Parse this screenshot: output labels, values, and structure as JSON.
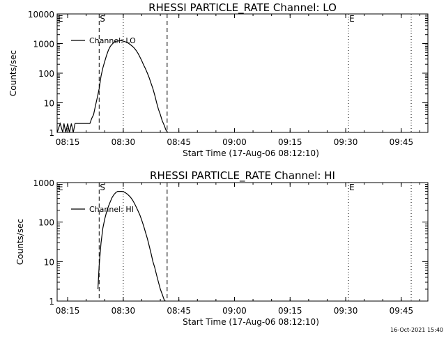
{
  "chart_data": [
    {
      "type": "line",
      "title": "RHESSI PARTICLE_RATE Channel: LO",
      "xlabel": "Start Time (17-Aug-06 08:12:10)",
      "ylabel": "Counts/sec",
      "yscale": "log",
      "ylim": [
        1,
        10000
      ],
      "y_ticks": [
        1,
        10,
        100,
        1000,
        10000
      ],
      "y_tick_labels": [
        "1",
        "10",
        "100",
        "1000",
        "10000"
      ],
      "x_ticks": [
        "08:15",
        "08:30",
        "08:45",
        "09:00",
        "09:15",
        "09:30",
        "09:45"
      ],
      "grid": false,
      "legend": "top-left",
      "markers": [
        {
          "label": "E",
          "time": "08:12:10",
          "style": "dotted"
        },
        {
          "label": "S",
          "time": "08:23:30",
          "style": "dashed"
        },
        {
          "label": "",
          "time": "08:30:00",
          "style": "dotted"
        },
        {
          "label": "",
          "time": "08:41:50",
          "style": "dashed"
        },
        {
          "label": "E",
          "time": "09:30:45",
          "style": "dotted"
        },
        {
          "label": "",
          "time": "09:47:40",
          "style": "dotted"
        }
      ],
      "series": [
        {
          "name": "Channel: LO",
          "x": [
            "08:12:10",
            "08:13:00",
            "08:13:40",
            "08:14:00",
            "08:14:30",
            "08:15:00",
            "08:15:30",
            "08:16:00",
            "08:16:30",
            "08:17:00",
            "08:17:30",
            "08:18:00",
            "08:18:30",
            "08:19:00",
            "08:19:30",
            "08:20:00",
            "08:20:30",
            "08:21:00",
            "08:21:30",
            "08:22:00",
            "08:22:30",
            "08:23:00",
            "08:23:30",
            "08:24:00",
            "08:24:30",
            "08:25:00",
            "08:25:30",
            "08:26:00",
            "08:26:30",
            "08:27:00",
            "08:27:30",
            "08:28:00",
            "08:28:30",
            "08:29:00",
            "08:29:30",
            "08:30:00",
            "08:30:30",
            "08:31:00",
            "08:31:30",
            "08:32:00",
            "08:32:30",
            "08:33:00",
            "08:33:30",
            "08:34:00",
            "08:34:30",
            "08:35:00",
            "08:35:30",
            "08:36:00",
            "08:36:30",
            "08:37:00",
            "08:37:30",
            "08:38:00",
            "08:38:30",
            "08:39:00",
            "08:39:30",
            "08:40:00",
            "08:40:30",
            "08:41:00",
            "08:41:30",
            "08:42:00"
          ],
          "y": [
            1,
            2,
            1,
            2,
            1,
            2,
            1,
            2,
            1,
            2,
            2,
            2,
            2,
            2,
            2,
            2,
            2,
            2,
            3,
            4,
            8,
            15,
            30,
            80,
            150,
            250,
            400,
            600,
            800,
            950,
            1100,
            1200,
            1200,
            1250,
            1250,
            1200,
            1150,
            1100,
            1000,
            900,
            800,
            700,
            580,
            460,
            350,
            260,
            190,
            140,
            100,
            70,
            45,
            30,
            18,
            10,
            6,
            4,
            2.5,
            1.8,
            1.2,
            1
          ]
        }
      ]
    },
    {
      "type": "line",
      "title": "RHESSI PARTICLE_RATE Channel: HI",
      "xlabel": "Start Time (17-Aug-06 08:12:10)",
      "ylabel": "Counts/sec",
      "yscale": "log",
      "ylim": [
        1,
        1000
      ],
      "y_ticks": [
        1,
        10,
        100,
        1000
      ],
      "y_tick_labels": [
        "1",
        "10",
        "100",
        "1000"
      ],
      "x_ticks": [
        "08:15",
        "08:30",
        "08:45",
        "09:00",
        "09:15",
        "09:30",
        "09:45"
      ],
      "grid": false,
      "legend": "top-left",
      "markers": [
        {
          "label": "E",
          "time": "08:12:10",
          "style": "dotted"
        },
        {
          "label": "S",
          "time": "08:23:30",
          "style": "dashed"
        },
        {
          "label": "",
          "time": "08:30:00",
          "style": "dotted"
        },
        {
          "label": "",
          "time": "08:41:50",
          "style": "dashed"
        },
        {
          "label": "E",
          "time": "09:30:45",
          "style": "dotted"
        },
        {
          "label": "",
          "time": "09:47:40",
          "style": "dotted"
        }
      ],
      "series": [
        {
          "name": "Channel: HI",
          "x": [
            "08:23:10",
            "08:23:30",
            "08:24:00",
            "08:24:30",
            "08:25:00",
            "08:25:30",
            "08:26:00",
            "08:26:30",
            "08:27:00",
            "08:27:30",
            "08:28:00",
            "08:28:30",
            "08:29:00",
            "08:29:30",
            "08:30:00",
            "08:30:30",
            "08:31:00",
            "08:31:30",
            "08:32:00",
            "08:32:30",
            "08:33:00",
            "08:33:30",
            "08:34:00",
            "08:34:30",
            "08:35:00",
            "08:35:30",
            "08:36:00",
            "08:36:30",
            "08:37:00",
            "08:37:30",
            "08:38:00",
            "08:38:30",
            "08:39:00",
            "08:39:30",
            "08:40:00",
            "08:40:30",
            "08:41:00",
            "08:41:20"
          ],
          "y": [
            2,
            8,
            30,
            70,
            120,
            180,
            250,
            330,
            420,
            500,
            560,
            600,
            600,
            600,
            590,
            560,
            520,
            470,
            420,
            360,
            300,
            240,
            190,
            150,
            110,
            80,
            55,
            38,
            25,
            16,
            10,
            7,
            4.5,
            3,
            2,
            1.5,
            1.1,
            1
          ]
        }
      ]
    }
  ],
  "footer": {
    "timestamp": "16-Oct-2021 15:40"
  }
}
